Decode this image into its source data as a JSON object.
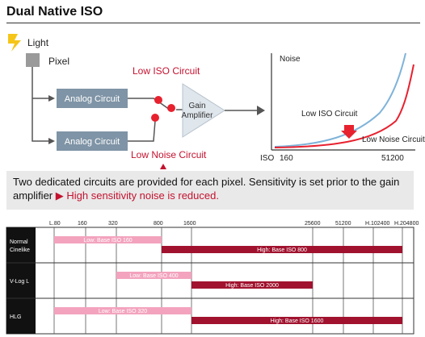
{
  "title": "Dual Native ISO",
  "diagram": {
    "light": "Light",
    "pixel": "Pixel",
    "analog_top": "Analog Circuit",
    "analog_bottom": "Analog Circuit",
    "low_iso_circuit": "Low ISO Circuit",
    "low_noise_circuit": "Low Noise Circuit",
    "gain_line1": "Gain",
    "gain_line2": "Amplifier",
    "graph": {
      "y_label": "Noise",
      "x_label": "ISO",
      "x_tick_left": "160",
      "x_tick_right": "51200",
      "curve_low_iso": "Low ISO Circuit",
      "curve_low_noise": "Low Noise Circuit"
    }
  },
  "caption": {
    "text": "Two dedicated circuits are provided for each pixel. Sensitivity is set prior to the gain amplifier",
    "arrow": "▶",
    "highlight": "High sensitivity noise is reduced."
  },
  "chart_data": {
    "type": "bar",
    "x_ticks": [
      "L.80",
      "160",
      "320",
      "800",
      "1600",
      "25600",
      "51200",
      "H.102400",
      "H.204800"
    ],
    "rows": [
      {
        "label_line1": "Normal",
        "label_line2": "Cinelike",
        "low": {
          "label": "Low: Base ISO 160",
          "from": "L.80",
          "to": "800"
        },
        "high": {
          "label": "High: Base ISO 800",
          "from": "800",
          "to": "H.204800"
        }
      },
      {
        "label_line1": "V-Log L",
        "label_line2": "",
        "low": {
          "label": "Low: Base ISO 400",
          "from": "320",
          "to": "1600"
        },
        "high": {
          "label": "High: Base ISO 2000",
          "from": "1600",
          "to": "25600"
        }
      },
      {
        "label_line1": "HLG",
        "label_line2": "",
        "low": {
          "label": "Low: Base ISO 320",
          "from": "L.80",
          "to": "1600"
        },
        "high": {
          "label": "High: Base ISO 1600",
          "from": "1600",
          "to": "H.204800"
        }
      }
    ],
    "colors": {
      "low": "#f3a3bd",
      "high": "#a0122e"
    }
  }
}
